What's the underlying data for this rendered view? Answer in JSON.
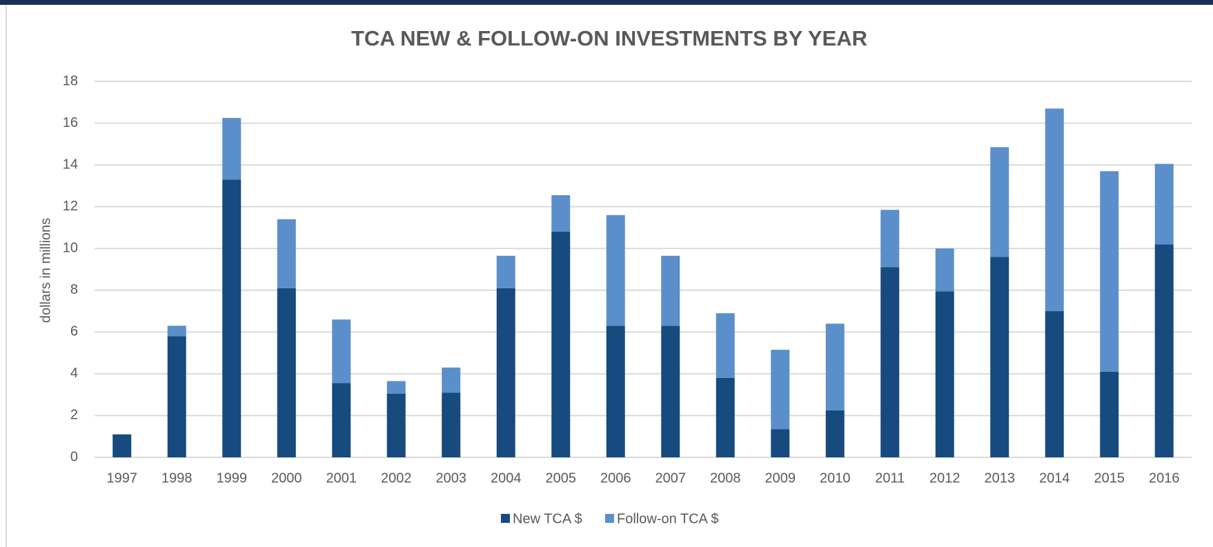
{
  "chart_data": {
    "type": "stacked_bar",
    "title": "TCA NEW & FOLLOW-ON INVESTMENTS BY YEAR",
    "y_label": "dollars  in millions",
    "categories": [
      "1997",
      "1998",
      "1999",
      "2000",
      "2001",
      "2002",
      "2003",
      "2004",
      "2005",
      "2006",
      "2007",
      "2008",
      "2009",
      "2010",
      "2011",
      "2012",
      "2013",
      "2014",
      "2015",
      "2016"
    ],
    "series": [
      {
        "name": "New TCA $",
        "color": "#174a7e",
        "values": [
          1.1,
          5.8,
          13.3,
          8.1,
          3.55,
          3.05,
          3.1,
          8.1,
          10.8,
          6.3,
          6.3,
          3.8,
          1.35,
          2.25,
          9.1,
          7.95,
          9.6,
          7.0,
          4.1,
          10.2
        ]
      },
      {
        "name": "Follow-on TCA $",
        "color": "#5b8fcb",
        "values": [
          0,
          0.5,
          2.95,
          3.3,
          3.05,
          0.6,
          1.2,
          1.55,
          1.75,
          5.3,
          3.35,
          3.1,
          3.8,
          4.15,
          2.75,
          2.05,
          5.25,
          9.7,
          9.6,
          3.85
        ]
      }
    ],
    "ylim": [
      0,
      18
    ],
    "yticks": [
      0,
      2,
      4,
      6,
      8,
      10,
      12,
      14,
      16,
      18
    ],
    "grid": true,
    "legend": "bottom"
  }
}
